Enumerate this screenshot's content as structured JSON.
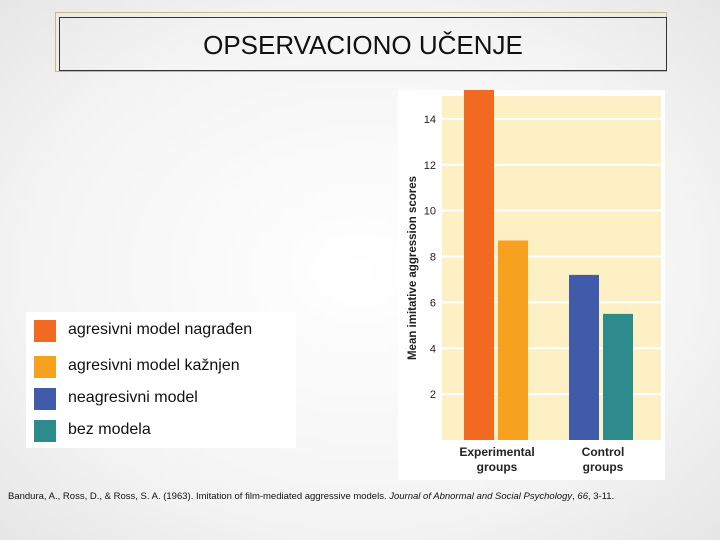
{
  "slide": {
    "title": "OPSERVACIONO UČENJE",
    "citation": {
      "prefix": "Bandura, A., Ross, D., & Ross, S. A. (1963). Imitation of film-mediated aggressive models. ",
      "journal": "Journal of Abnormal and Social Psychology",
      "sep": ", ",
      "volume": "66",
      "pages": ", 3-11."
    }
  },
  "legend": {
    "items": [
      {
        "label": "agresivni model nagrađen",
        "color": "#f26a21"
      },
      {
        "label": "agresivni model kažnjen",
        "color": "#f7a21e"
      },
      {
        "label": "neagresivni model",
        "color": "#3f5ba9"
      },
      {
        "label": "bez modela",
        "color": "#2e8b8b"
      }
    ]
  },
  "chart_data": {
    "type": "bar",
    "ylabel": "Mean imitative aggression scores",
    "ylim": [
      0,
      15
    ],
    "yticks": [
      "2",
      "4",
      "6",
      "8",
      "10",
      "12",
      "14"
    ],
    "groups": [
      {
        "line1": "Experimental",
        "line2": "groups"
      },
      {
        "line1": "Control",
        "line2": "groups"
      }
    ],
    "bars": [
      {
        "group": 0,
        "value": 15.3,
        "color": "#f26a21"
      },
      {
        "group": 0,
        "value": 8.7,
        "color": "#f7a21e"
      },
      {
        "group": 1,
        "value": 7.2,
        "color": "#3f5ba9"
      },
      {
        "group": 1,
        "value": 5.5,
        "color": "#2e8b8b"
      }
    ],
    "plot_background": "#fdf0c4",
    "grid": true
  }
}
